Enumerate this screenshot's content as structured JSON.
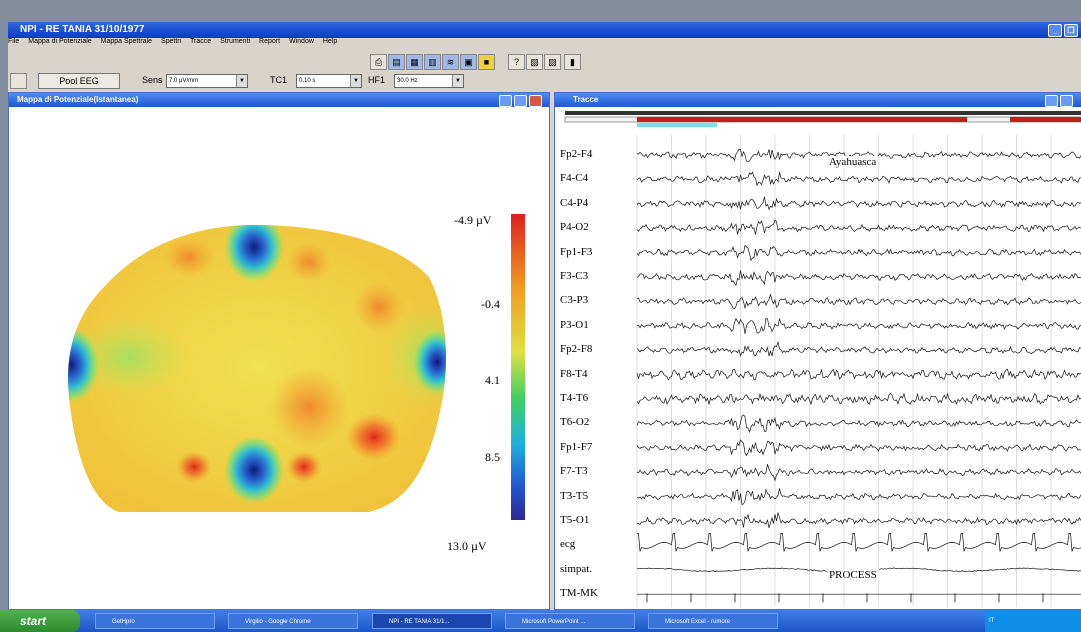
{
  "app": {
    "title": "NPI - RE TANIA 31/10/1977",
    "menu": [
      "File",
      "Mappa di Potenziale",
      "Mappa Spettrale",
      "Spettri",
      "Tracce",
      "Strumenti",
      "Report",
      "Window",
      "Help"
    ]
  },
  "controls": {
    "pool_button": "Pool EEG",
    "sens_label": "Sens",
    "sens_value": "7.0 µV/mm",
    "tc_label": "TC1",
    "tc_value": "0.10 s",
    "hf_label": "HF1",
    "hf_value": "30.0 Hz"
  },
  "map_window": {
    "title": "Mappa di Potenziale(Istantanea)",
    "scale_labels": [
      "-4.9 µV",
      "-0.4",
      "4.1",
      "8.5",
      "13.0 µV"
    ],
    "colors": {
      "low": "#e02020",
      "mid": "#f0e040",
      "high": "#2a2aa0"
    }
  },
  "traces_window": {
    "title": "Tracce",
    "annotation_top": "Ayahuasca",
    "annotation_bottom": "PROCESS",
    "channels": [
      "Fp2-F4",
      "F4-C4",
      "C4-P4",
      "P4-O2",
      "Fp1-F3",
      "F3-C3",
      "C3-P3",
      "P3-O1",
      "Fp2-F8",
      "F8-T4",
      "T4-T6",
      "T6-O2",
      "Fp1-F7",
      "F7-T3",
      "T3-T5",
      "T5-O1",
      "ecg",
      "simpat.",
      "TM-MK"
    ]
  },
  "taskbar": {
    "start": "start",
    "tasks": [
      "GetHpro",
      "Virgilio - Google Chrome",
      "NPI - RE TANIA 31/1...",
      "Microsoft PowerPoint ...",
      "Microsoft Excel - rumore"
    ],
    "tray_text": "IT"
  }
}
